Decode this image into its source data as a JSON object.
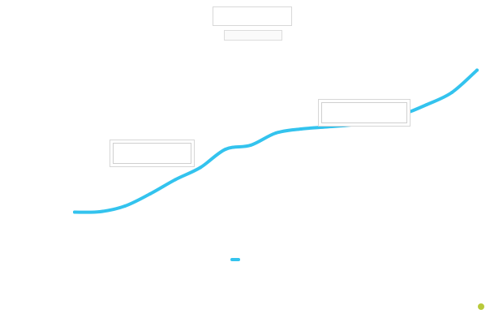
{
  "chart_data": {
    "type": "line",
    "title": "",
    "subtitle": "",
    "xlabel": "",
    "ylabel": "",
    "categories": [
      "",
      "",
      "",
      "",
      "",
      "",
      "",
      "",
      "",
      "",
      "",
      "",
      "",
      "",
      "",
      "",
      ""
    ],
    "yticks": [
      "",
      "",
      "",
      ""
    ],
    "ylim": [
      0,
      4
    ],
    "grid": false,
    "legend_position": "bottom",
    "series": [
      {
        "name": "",
        "color": "#33c3ee",
        "values": [
          0.05,
          0.06,
          0.2,
          0.5,
          0.85,
          1.15,
          1.6,
          1.7,
          2.0,
          2.1,
          2.15,
          2.2,
          2.3,
          2.45,
          2.7,
          3.0,
          3.55
        ]
      }
    ],
    "annotations": [
      {
        "label": "",
        "category_index": 4
      },
      {
        "label": "",
        "category_index": 12
      }
    ]
  },
  "credits": ""
}
